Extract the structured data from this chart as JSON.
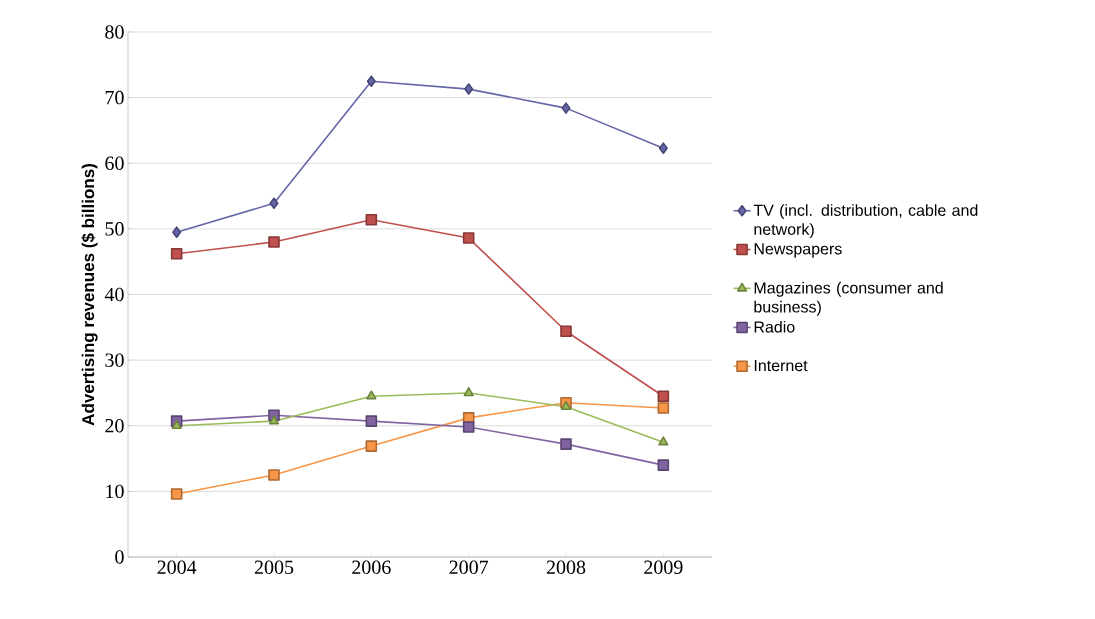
{
  "chart_data": {
    "type": "line",
    "ylabel": "Advertising revenues ($ billions)",
    "categories": [
      "2004",
      "2005",
      "2006",
      "2007",
      "2008",
      "2009"
    ],
    "ylim": [
      0,
      80
    ],
    "yticks": [
      0,
      10,
      20,
      30,
      40,
      50,
      60,
      70,
      80
    ],
    "grid": "y",
    "legend": "right",
    "line_style": "solid",
    "series": [
      {
        "name": "TV (incl. distribution, cable and network)",
        "color": "#6566a8",
        "marker": "diamond",
        "values": [
          49.5,
          53.9,
          72.5,
          71.3,
          68.4,
          62.3
        ]
      },
      {
        "name": "Newspapers",
        "color": "#c0504d",
        "marker": "square",
        "values": [
          46.2,
          48.0,
          51.4,
          48.6,
          34.4,
          24.5
        ]
      },
      {
        "name": "Magazines (consumer and business)",
        "color": "#9bbb59",
        "marker": "triangle",
        "values": [
          20.0,
          20.7,
          24.5,
          25.0,
          22.9,
          17.5
        ]
      },
      {
        "name": "Radio",
        "color": "#8064a2",
        "marker": "square",
        "values": [
          20.7,
          21.6,
          20.7,
          19.8,
          17.2,
          14.0
        ]
      },
      {
        "name": "Internet",
        "color": "#f79646",
        "marker": "square",
        "values": [
          9.6,
          12.5,
          16.9,
          21.2,
          23.5,
          22.7
        ]
      }
    ]
  }
}
